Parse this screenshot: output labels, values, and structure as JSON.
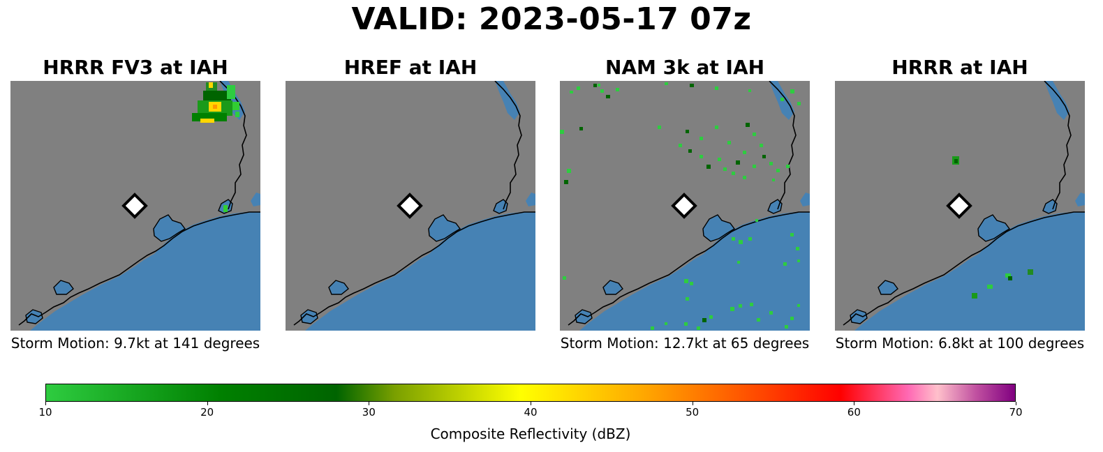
{
  "title": "VALID: 2023-05-17 07z",
  "site_marker": "white-diamond",
  "colors": {
    "land": "#808080",
    "water": "#4682b4",
    "coast": "#000000"
  },
  "panels": [
    {
      "title": "HRRR FV3 at IAH",
      "storm_motion": "Storm Motion: 9.7kt at 141 degrees"
    },
    {
      "title": "HREF at IAH",
      "storm_motion": ""
    },
    {
      "title": "NAM 3k at IAH",
      "storm_motion": "Storm Motion: 12.7kt at 65 degrees"
    },
    {
      "title": "HRRR at IAH",
      "storm_motion": "Storm Motion: 6.8kt at 100 degrees"
    }
  ],
  "colorbar": {
    "label": "Composite Reflectivity (dBZ)",
    "ticks": [
      "10",
      "20",
      "30",
      "40",
      "50",
      "60",
      "70"
    ],
    "min": 10,
    "max": 70
  }
}
